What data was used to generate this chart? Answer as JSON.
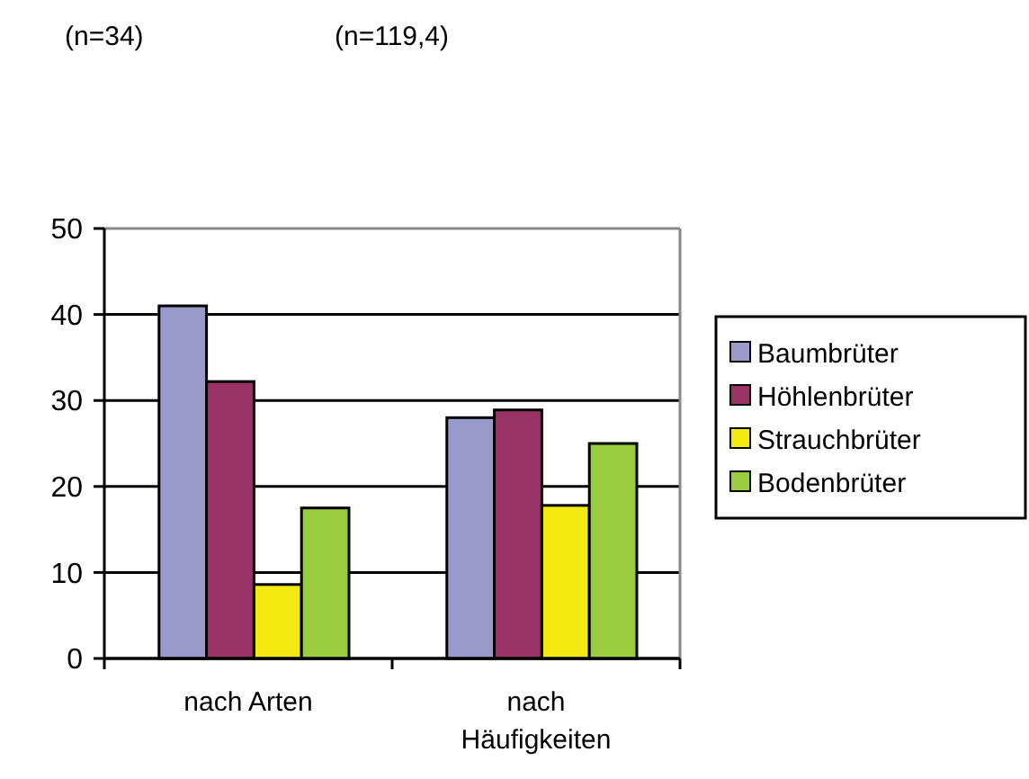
{
  "chart_data": {
    "type": "bar",
    "categories": [
      "nach Arten",
      "nach Häufigkeiten"
    ],
    "series": [
      {
        "name": "Baumbrüter",
        "color": "#9999cc",
        "values": [
          41,
          28
        ]
      },
      {
        "name": "Höhlenbrüter",
        "color": "#993366",
        "values": [
          32.2,
          28.9
        ]
      },
      {
        "name": "Strauchbrüter",
        "color": "#f2ea10",
        "values": [
          8.6,
          17.8
        ]
      },
      {
        "name": "Bodenbrüter",
        "color": "#99cc3f",
        "values": [
          17.5,
          25
        ]
      }
    ],
    "ylim": [
      0,
      50
    ],
    "yticks": [
      0,
      10,
      20,
      30,
      40,
      50
    ],
    "grid": "y",
    "legend": "right",
    "annotations": [
      "(n=34)",
      "(n=119,4)"
    ]
  }
}
